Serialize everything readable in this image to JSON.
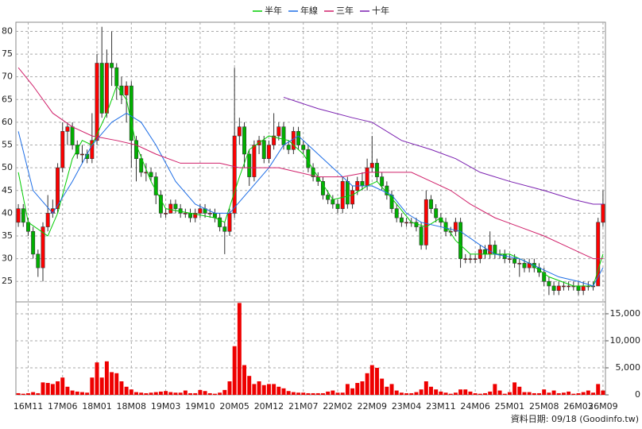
{
  "chart_data": [
    {
      "type": "candlestick",
      "categories": [
        null,
        null,
        "16M11",
        null,
        null,
        null,
        null,
        null,
        null,
        "17M06",
        null,
        null,
        null,
        null,
        null,
        null,
        "18M01",
        null,
        null,
        null,
        null,
        null,
        null,
        "18M08",
        null,
        null,
        null,
        null,
        null,
        null,
        "19M03",
        null,
        null,
        null,
        null,
        null,
        null,
        "19M10",
        null,
        null,
        null,
        null,
        null,
        null,
        "20M05",
        null,
        null,
        null,
        null,
        null,
        null,
        "20M12",
        null,
        null,
        null,
        null,
        null,
        null,
        "21M07",
        null,
        null,
        null,
        null,
        null,
        null,
        "22M02",
        null,
        null,
        null,
        null,
        null,
        null,
        "22M09",
        null,
        null,
        null,
        null,
        null,
        null,
        "23M04",
        null,
        null,
        null,
        null,
        null,
        null,
        "23M11",
        null,
        null,
        null,
        null,
        null,
        null,
        "24M06",
        null,
        null,
        null,
        null,
        null,
        null,
        "25M01",
        null,
        null,
        null,
        null,
        null,
        null,
        "25M08",
        null,
        null,
        null,
        null,
        null,
        null,
        "26M03",
        null,
        null,
        null,
        null,
        "26M09"
      ],
      "open": [
        38,
        41,
        38,
        36,
        31,
        28,
        37,
        40,
        41,
        50,
        58,
        59,
        55,
        53,
        53,
        52,
        56,
        73,
        62,
        73,
        72,
        68,
        66,
        68,
        56,
        52,
        49,
        49,
        48,
        44,
        40,
        40,
        42,
        41,
        40,
        40,
        39,
        40,
        41,
        40,
        40,
        39,
        37,
        36,
        40,
        57,
        59,
        53,
        48,
        55,
        56,
        52,
        55,
        57,
        59,
        55,
        54,
        58,
        55,
        54,
        50,
        48,
        47,
        44,
        43,
        42,
        41,
        47,
        42,
        45,
        47,
        46,
        50,
        51,
        48,
        46,
        44,
        41,
        39,
        38,
        38,
        38,
        37,
        33,
        43,
        41,
        39,
        38,
        36,
        36,
        38,
        30,
        30,
        30,
        30,
        32,
        31,
        33,
        31,
        31,
        30,
        30,
        29,
        29,
        28,
        29,
        28,
        27,
        25,
        24,
        23,
        24,
        24,
        24,
        24,
        23,
        24,
        24,
        24,
        38
      ],
      "high": [
        42,
        42,
        39,
        37,
        32,
        38,
        44,
        43,
        51,
        60,
        60,
        60,
        56,
        55,
        54,
        62,
        75,
        81,
        76,
        80,
        73,
        70,
        69,
        69,
        57,
        53,
        51,
        50,
        49,
        45,
        41,
        43,
        43,
        42,
        41,
        41,
        41,
        42,
        42,
        41,
        41,
        40,
        38,
        41,
        72,
        61,
        60,
        54,
        56,
        57,
        57,
        56,
        62,
        60,
        60,
        56,
        59,
        59,
        56,
        55,
        51,
        49,
        48,
        45,
        44,
        43,
        48,
        48,
        46,
        48,
        49,
        52,
        57,
        52,
        49,
        47,
        45,
        42,
        40,
        39,
        39,
        39,
        38,
        45,
        44,
        42,
        40,
        39,
        37,
        39,
        39,
        31,
        31,
        31,
        33,
        33,
        36,
        34,
        32,
        32,
        31,
        31,
        30,
        30,
        30,
        30,
        29,
        28,
        26,
        25,
        25,
        25,
        25,
        25,
        25,
        25,
        25,
        25,
        39,
        45
      ],
      "low": [
        37,
        37,
        35,
        30,
        26,
        25,
        36,
        39,
        40,
        49,
        55,
        54,
        52,
        51,
        51,
        51,
        55,
        61,
        61,
        68,
        65,
        64,
        60,
        50,
        47,
        48,
        47,
        47,
        42,
        39,
        39,
        40,
        40,
        39,
        39,
        38,
        38,
        39,
        39,
        39,
        38,
        36,
        31,
        35,
        39,
        55,
        50,
        46,
        47,
        53,
        51,
        51,
        54,
        56,
        54,
        53,
        53,
        54,
        53,
        49,
        47,
        46,
        43,
        42,
        41,
        40,
        40,
        41,
        41,
        44,
        45,
        45,
        49,
        47,
        45,
        43,
        40,
        38,
        37,
        37,
        37,
        36,
        32,
        32,
        40,
        38,
        37,
        35,
        35,
        35,
        28,
        29,
        29,
        29,
        29,
        30,
        30,
        30,
        30,
        29,
        29,
        28,
        26,
        27,
        27,
        27,
        26,
        24,
        22,
        22,
        22,
        23,
        23,
        23,
        22,
        22,
        23,
        23,
        24,
        37
      ],
      "close": [
        41,
        38,
        36,
        31,
        28,
        37,
        40,
        41,
        50,
        58,
        59,
        55,
        53,
        53,
        52,
        56,
        73,
        62,
        73,
        72,
        68,
        66,
        68,
        56,
        52,
        49,
        49,
        48,
        44,
        40,
        40,
        42,
        41,
        40,
        40,
        39,
        40,
        41,
        40,
        40,
        39,
        37,
        36,
        40,
        57,
        59,
        53,
        48,
        55,
        56,
        52,
        55,
        57,
        59,
        55,
        54,
        58,
        55,
        54,
        50,
        48,
        47,
        44,
        43,
        42,
        41,
        47,
        42,
        45,
        47,
        46,
        50,
        51,
        48,
        46,
        44,
        41,
        39,
        38,
        38,
        38,
        37,
        33,
        43,
        41,
        39,
        38,
        36,
        36,
        38,
        30,
        30,
        30,
        30,
        32,
        31,
        33,
        31,
        31,
        30,
        30,
        29,
        29,
        28,
        29,
        28,
        27,
        25,
        24,
        23,
        24,
        24,
        24,
        24,
        23,
        24,
        24,
        24,
        38,
        42
      ],
      "up_color": "#ff0000",
      "down_color": "#00b000",
      "lines": [
        {
          "name": "半年",
          "color": "#00cc00",
          "x": [
            0,
            2,
            6,
            8,
            11,
            13,
            15,
            18,
            20,
            22,
            24,
            27,
            30,
            35,
            40,
            42,
            45,
            47,
            51,
            55,
            58,
            61,
            64,
            68,
            71,
            73,
            77,
            80,
            83,
            86,
            89,
            92,
            95,
            100,
            104,
            108,
            113,
            117,
            119
          ],
          "values": [
            49,
            38,
            35,
            40,
            52,
            56,
            55,
            62,
            68,
            65,
            55,
            47,
            41,
            40,
            39,
            38,
            48,
            54,
            57,
            56,
            53,
            48,
            43,
            44,
            46,
            47,
            42,
            38,
            37,
            39,
            34,
            31,
            31,
            31,
            29,
            26,
            24,
            24,
            31
          ]
        },
        {
          "name": "年線",
          "color": "#1e6ee6",
          "x": [
            0,
            3,
            7,
            11,
            15,
            19,
            22,
            25,
            28,
            32,
            36,
            40,
            43,
            47,
            51,
            54,
            57,
            60,
            64,
            68,
            72,
            76,
            79,
            82,
            86,
            90,
            94,
            97,
            102,
            106,
            110,
            114,
            117,
            119
          ],
          "values": [
            58,
            45,
            40,
            47,
            55,
            60,
            62,
            60,
            55,
            47,
            42,
            40,
            40,
            45,
            50,
            55,
            57,
            54,
            50,
            46,
            46,
            44,
            40,
            38,
            37,
            36,
            33,
            31,
            30,
            28,
            26,
            25,
            24,
            28
          ]
        },
        {
          "name": "三年",
          "color": "#d0206a",
          "x": [
            0,
            3,
            7,
            11,
            15,
            20,
            24,
            28,
            33,
            37,
            41,
            45,
            49,
            53,
            57,
            61,
            66,
            71,
            76,
            80,
            84,
            88,
            92,
            97,
            102,
            107,
            111,
            115,
            117,
            119
          ],
          "values": [
            72,
            68,
            62,
            59,
            57,
            56,
            55,
            53,
            51,
            51,
            51,
            50,
            50,
            50,
            49,
            48,
            48,
            49,
            49,
            49,
            47,
            45,
            42,
            39,
            37,
            35,
            33,
            31,
            30,
            30
          ]
        },
        {
          "name": "十年",
          "color": "#7a1fb0",
          "x": [
            54,
            61,
            68,
            72,
            78,
            84,
            89,
            94,
            100,
            107,
            113,
            117,
            119
          ],
          "values": [
            65.5,
            63,
            61,
            60,
            56,
            54,
            52,
            49,
            47,
            45,
            43,
            42,
            42
          ]
        }
      ],
      "ylim": [
        20.5,
        82
      ],
      "yticks": [
        25,
        30,
        35,
        40,
        45,
        50,
        55,
        60,
        65,
        70,
        75,
        80
      ],
      "grid": true
    },
    {
      "type": "bar",
      "color": "#ee0000",
      "values": [
        300,
        200,
        300,
        500,
        300,
        2300,
        2200,
        2000,
        2500,
        3200,
        1500,
        800,
        600,
        500,
        400,
        3200,
        6000,
        3200,
        6200,
        4200,
        4000,
        2500,
        1500,
        1000,
        500,
        400,
        300,
        400,
        500,
        600,
        700,
        500,
        400,
        400,
        800,
        300,
        300,
        900,
        700,
        300,
        200,
        400,
        900,
        2500,
        9000,
        17000,
        5500,
        3500,
        2000,
        2500,
        1800,
        2000,
        2000,
        1500,
        1200,
        700,
        500,
        400,
        400,
        300,
        300,
        300,
        300,
        600,
        800,
        400,
        400,
        2000,
        1200,
        2200,
        2500,
        4000,
        5500,
        5000,
        3000,
        1500,
        2000,
        800,
        400,
        300,
        300,
        500,
        1000,
        2500,
        1500,
        1000,
        600,
        400,
        200,
        400,
        1000,
        1000,
        600,
        300,
        200,
        300,
        600,
        2000,
        800,
        200,
        500,
        2300,
        1500,
        500,
        500,
        300,
        300,
        1000,
        400,
        800,
        300,
        400,
        600,
        200,
        300,
        500,
        800,
        400,
        2000,
        800
      ],
      "ylim": [
        0,
        17200
      ],
      "yticks": [
        0,
        {
          "value": 5000,
          "label": "5,000"
        },
        {
          "value": 10000,
          "label": "10,000"
        },
        {
          "value": 15000,
          "label": "15,000"
        }
      ],
      "note": "資料日期: 09/18 (Goodinfo.tw)"
    }
  ]
}
